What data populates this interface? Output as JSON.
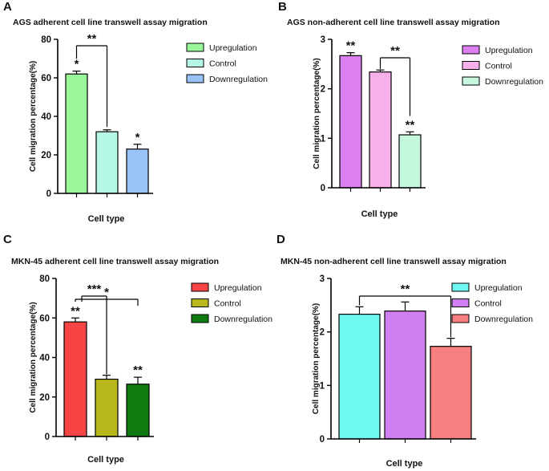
{
  "chart_data": [
    {
      "panel": "A",
      "type": "bar",
      "title": "AGS adherent cell line transwell assay migration",
      "xlabel": "Cell type",
      "ylabel": "Cell migration percentage(%)",
      "ylim": [
        0,
        80
      ],
      "yticks": [
        0,
        20,
        40,
        60,
        80
      ],
      "legend_position": "right",
      "series": [
        {
          "name": "Upregulation",
          "value": 62,
          "error": 1.5,
          "color": "#9af79a",
          "sig": "*"
        },
        {
          "name": "Control",
          "value": 32,
          "error": 1,
          "color": "#b5f7e6",
          "sig": ""
        },
        {
          "name": "Downregulation",
          "value": 23,
          "error": 2.5,
          "color": "#99c2f7",
          "sig": "*"
        }
      ],
      "brackets": [
        {
          "from": 0,
          "to": 1,
          "label": "**"
        }
      ]
    },
    {
      "panel": "B",
      "type": "bar",
      "title": "AGS non-adherent cell line transwell assay migration",
      "xlabel": "Cell type",
      "ylabel": "Cell migration percentage(%)",
      "ylim": [
        0,
        3
      ],
      "yticks": [
        0,
        1,
        2,
        3
      ],
      "legend_position": "right",
      "series": [
        {
          "name": "Upregulation",
          "value": 2.67,
          "error": 0.06,
          "color": "#dc7ff0",
          "sig": "**"
        },
        {
          "name": "Control",
          "value": 2.34,
          "error": 0.04,
          "color": "#f7b0ea",
          "sig": ""
        },
        {
          "name": "Downregulation",
          "value": 1.07,
          "error": 0.06,
          "color": "#c5f7df",
          "sig": "**"
        }
      ],
      "brackets": [
        {
          "from": 1,
          "to": 2,
          "label": "**"
        }
      ]
    },
    {
      "panel": "C",
      "type": "bar",
      "title": "MKN-45 adherent cell line transwell assay migration",
      "xlabel": "Cell type",
      "ylabel": "Cell migration percentage(%)",
      "ylim": [
        0,
        80
      ],
      "yticks": [
        0,
        20,
        40,
        60,
        80
      ],
      "legend_position": "right",
      "series": [
        {
          "name": "Upregulation",
          "value": 58,
          "error": 2,
          "color": "#f74545",
          "sig": "**"
        },
        {
          "name": "Control",
          "value": 29,
          "error": 2,
          "color": "#b8b81a",
          "sig": ""
        },
        {
          "name": "Downregulation",
          "value": 26.5,
          "error": 3.5,
          "color": "#0f7a0f",
          "sig": "**"
        }
      ],
      "brackets": [
        {
          "from": 0,
          "to": 1,
          "label": "***"
        },
        {
          "from": 0,
          "to": 2,
          "label": "*"
        }
      ]
    },
    {
      "panel": "D",
      "type": "bar",
      "title": "MKN-45 non-adherent cell line transwell assay migration",
      "xlabel": "Cell type",
      "ylabel": "Cell migration percentage(%)",
      "ylim": [
        0,
        3
      ],
      "yticks": [
        0,
        1,
        2,
        3
      ],
      "legend_position": "right",
      "series": [
        {
          "name": "Upregulation",
          "value": 2.33,
          "error": 0.14,
          "color": "#6ff7f2",
          "sig": ""
        },
        {
          "name": "Control",
          "value": 2.39,
          "error": 0.17,
          "color": "#cf7ff0",
          "sig": ""
        },
        {
          "name": "Downregulation",
          "value": 1.73,
          "error": 0.15,
          "color": "#f77f7f",
          "sig": ""
        }
      ],
      "brackets": [
        {
          "from": 0,
          "to": 2,
          "label": "**"
        }
      ]
    }
  ]
}
